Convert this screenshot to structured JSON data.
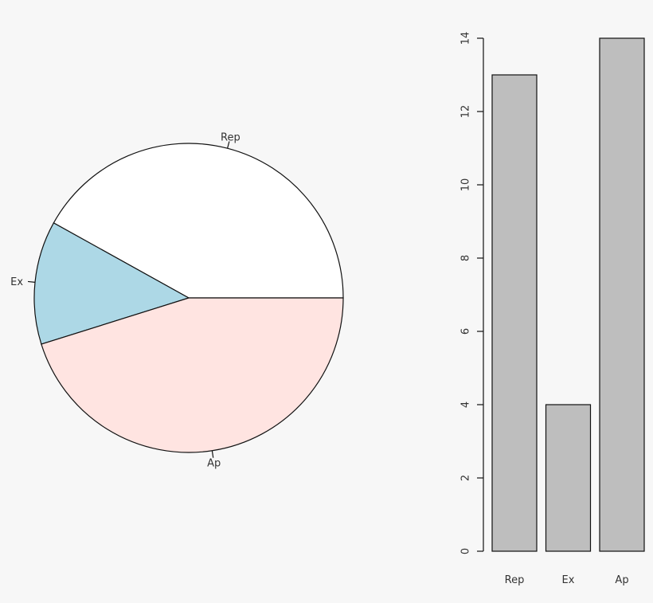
{
  "chart_data": [
    {
      "type": "pie",
      "categories": [
        "Rep",
        "Ex",
        "Ap"
      ],
      "values": [
        13,
        4,
        14
      ],
      "colors": [
        "#ffffff",
        "#add8e6",
        "#ffe4e1"
      ],
      "start": "counterclockwise from 3 o'clock",
      "labels_outside": true
    },
    {
      "type": "bar",
      "categories": [
        "Rep",
        "Ex",
        "Ap"
      ],
      "values": [
        13,
        4,
        14
      ],
      "bar_color": "#bebebe",
      "ylim": [
        0,
        14
      ],
      "yticks": [
        0,
        2,
        4,
        6,
        8,
        10,
        12,
        14
      ],
      "grid": false
    }
  ]
}
